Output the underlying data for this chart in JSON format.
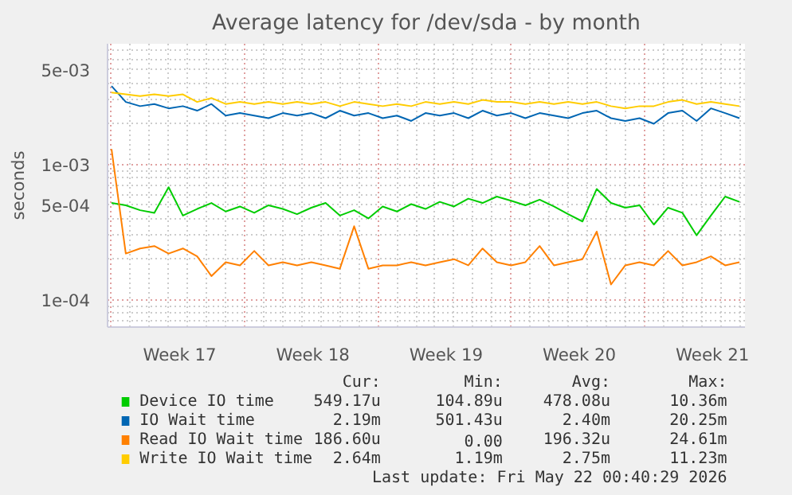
{
  "chart_data": {
    "type": "line",
    "title": "Average latency for /dev/sda - by month",
    "ylabel": "seconds",
    "log": "y",
    "grid": true,
    "legend": "bottom",
    "marker": "none",
    "line_style": "solid",
    "xlim": [
      "2026-04-19T19:00",
      "2026-05-23T07:00"
    ],
    "ylim": [
      6.3e-05,
      0.0078
    ],
    "xticks": [
      {
        "value": "2026-04-20",
        "label": null
      },
      {
        "value": "2026-04-23T14:00",
        "label": "Week 17"
      },
      {
        "value": "2026-04-27",
        "label": null
      },
      {
        "value": "2026-04-30T14:00",
        "label": "Week 18"
      },
      {
        "value": "2026-05-04",
        "label": null
      },
      {
        "value": "2026-05-07T14:00",
        "label": "Week 19"
      },
      {
        "value": "2026-05-11",
        "label": null
      },
      {
        "value": "2026-05-14T14:00",
        "label": "Week 20"
      },
      {
        "value": "2026-05-18",
        "label": null
      },
      {
        "value": "2026-05-21T14:00",
        "label": "Week 21"
      }
    ],
    "yticks": [
      {
        "value": 0.0001,
        "label": "1e-04"
      },
      {
        "value": 0.0005,
        "label": "5e-04"
      },
      {
        "value": 0.001,
        "label": "1e-03"
      },
      {
        "value": 0.005,
        "label": "5e-03"
      }
    ],
    "x": [
      "2026-04-20T00:00",
      "2026-04-20T18:00",
      "2026-04-21T12:00",
      "2026-04-22T06:00",
      "2026-04-23T00:00",
      "2026-04-23T18:00",
      "2026-04-24T12:00",
      "2026-04-25T06:00",
      "2026-04-26T00:00",
      "2026-04-26T18:00",
      "2026-04-27T12:00",
      "2026-04-28T06:00",
      "2026-04-29T00:00",
      "2026-04-29T18:00",
      "2026-04-30T12:00",
      "2026-05-01T06:00",
      "2026-05-02T00:00",
      "2026-05-02T18:00",
      "2026-05-03T12:00",
      "2026-05-04T06:00",
      "2026-05-05T00:00",
      "2026-05-05T18:00",
      "2026-05-06T12:00",
      "2026-05-07T06:00",
      "2026-05-08T00:00",
      "2026-05-08T18:00",
      "2026-05-09T12:00",
      "2026-05-10T06:00",
      "2026-05-11T00:00",
      "2026-05-11T18:00",
      "2026-05-12T12:00",
      "2026-05-13T06:00",
      "2026-05-14T00:00",
      "2026-05-14T18:00",
      "2026-05-15T12:00",
      "2026-05-16T06:00",
      "2026-05-17T00:00",
      "2026-05-17T18:00",
      "2026-05-18T12:00",
      "2026-05-19T06:00",
      "2026-05-20T00:00",
      "2026-05-20T18:00",
      "2026-05-21T12:00",
      "2026-05-22T06:00",
      "2026-05-23T00:00"
    ],
    "series": [
      {
        "name": "Device IO time",
        "color": "#00cc00",
        "values": [
          0.00052,
          0.0005,
          0.00046,
          0.00044,
          0.00068,
          0.00042,
          0.00047,
          0.00052,
          0.00045,
          0.00049,
          0.00044,
          0.0005,
          0.00047,
          0.00043,
          0.00048,
          0.00052,
          0.00042,
          0.00046,
          0.0004,
          0.00049,
          0.00045,
          0.00051,
          0.00047,
          0.00053,
          0.00049,
          0.00056,
          0.00052,
          0.00058,
          0.00054,
          0.0005,
          0.00055,
          0.00049,
          0.00043,
          0.00038,
          0.00066,
          0.00052,
          0.00048,
          0.0005,
          0.00036,
          0.00048,
          0.00044,
          0.0003,
          0.00042,
          0.00058,
          0.00053
        ]
      },
      {
        "name": "IO Wait time",
        "color": "#0066b3",
        "values": [
          0.0038,
          0.0029,
          0.0027,
          0.0028,
          0.0026,
          0.0027,
          0.0025,
          0.0028,
          0.0023,
          0.0024,
          0.0023,
          0.0022,
          0.0024,
          0.0023,
          0.0024,
          0.0022,
          0.0025,
          0.0023,
          0.0024,
          0.0022,
          0.0023,
          0.0021,
          0.0024,
          0.0023,
          0.0024,
          0.0022,
          0.0025,
          0.0023,
          0.0024,
          0.0022,
          0.0024,
          0.0023,
          0.0022,
          0.0024,
          0.0025,
          0.0022,
          0.0021,
          0.0022,
          0.002,
          0.0024,
          0.0025,
          0.0021,
          0.0026,
          0.0024,
          0.0022
        ]
      },
      {
        "name": "Read IO Wait time",
        "color": "#ff8000",
        "values": [
          0.0013,
          0.00022,
          0.00024,
          0.00025,
          0.00022,
          0.00024,
          0.00021,
          0.00015,
          0.00019,
          0.00018,
          0.00023,
          0.00018,
          0.00019,
          0.00018,
          0.00019,
          0.00018,
          0.00017,
          0.00035,
          0.00017,
          0.00018,
          0.00018,
          0.00019,
          0.00018,
          0.00019,
          0.0002,
          0.00018,
          0.00024,
          0.00019,
          0.00018,
          0.00019,
          0.00025,
          0.00018,
          0.00019,
          0.0002,
          0.00032,
          0.00013,
          0.00018,
          0.00019,
          0.00018,
          0.00023,
          0.00018,
          0.00019,
          0.00021,
          0.00018,
          0.00019
        ]
      },
      {
        "name": "Write IO Wait time",
        "color": "#ffcc00",
        "values": [
          0.0034,
          0.0033,
          0.0032,
          0.0033,
          0.0032,
          0.0033,
          0.0029,
          0.0031,
          0.0028,
          0.0029,
          0.0028,
          0.0029,
          0.0028,
          0.0029,
          0.0028,
          0.0029,
          0.0027,
          0.0029,
          0.0028,
          0.0027,
          0.0028,
          0.0027,
          0.0029,
          0.0028,
          0.0029,
          0.0028,
          0.003,
          0.0029,
          0.0029,
          0.0028,
          0.0029,
          0.0028,
          0.0029,
          0.0028,
          0.0029,
          0.0027,
          0.0026,
          0.0027,
          0.0027,
          0.0029,
          0.003,
          0.0028,
          0.0029,
          0.0028,
          0.0027
        ]
      }
    ],
    "annotations": [
      "Cur:",
      "Min:",
      "Avg:",
      "Max:",
      "549.17u",
      "104.89u",
      "478.08u",
      "10.36m",
      "2.19m",
      "501.43u",
      "2.40m",
      "20.25m",
      "186.60u",
      "0.00",
      "196.32u",
      "24.61m",
      "2.64m",
      "1.19m",
      "2.75m",
      "11.23m",
      "Last update: Fri May 22 00:40:29 2026"
    ]
  }
}
